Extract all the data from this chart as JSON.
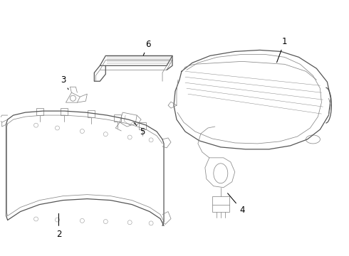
{
  "background_color": "#ffffff",
  "line_color": "#555555",
  "label_color": "#000000",
  "fig_width": 4.9,
  "fig_height": 3.6,
  "dpi": 100,
  "lw_main": 0.9,
  "lw_thin": 0.55,
  "lw_xtra": 0.35,
  "label_fs": 8.5
}
